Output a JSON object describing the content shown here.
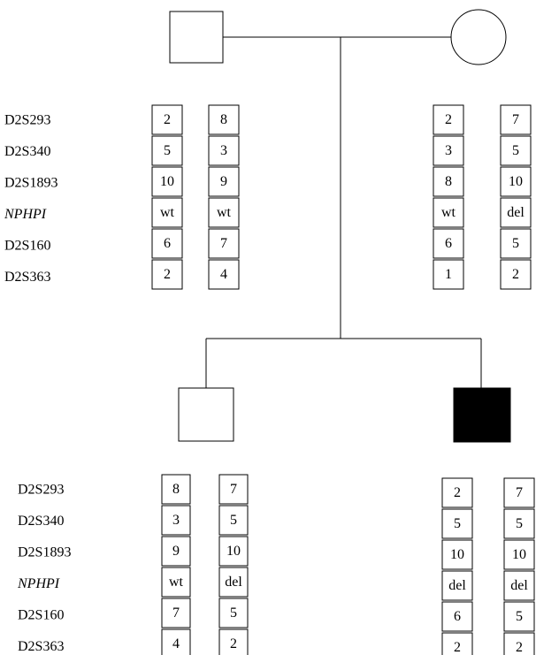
{
  "markers": [
    "D2S293",
    "D2S340",
    "D2S1893",
    "NPHPI",
    "D2S160",
    "D2S363"
  ],
  "haplotypes": {
    "father": [
      [
        "2",
        "5",
        "10",
        "wt",
        "6",
        "2"
      ],
      [
        "8",
        "3",
        "9",
        "wt",
        "7",
        "4"
      ]
    ],
    "mother": [
      [
        "2",
        "3",
        "8",
        "wt",
        "6",
        "1"
      ],
      [
        "7",
        "5",
        "10",
        "del",
        "5",
        "2"
      ]
    ],
    "son": [
      [
        "8",
        "3",
        "9",
        "wt",
        "7",
        "4"
      ],
      [
        "7",
        "5",
        "10",
        "del",
        "5",
        "2"
      ]
    ],
    "affected_son": [
      [
        "2",
        "5",
        "10",
        "del",
        "6",
        "2"
      ],
      [
        "7",
        "5",
        "10",
        "del",
        "5",
        "2"
      ]
    ]
  }
}
